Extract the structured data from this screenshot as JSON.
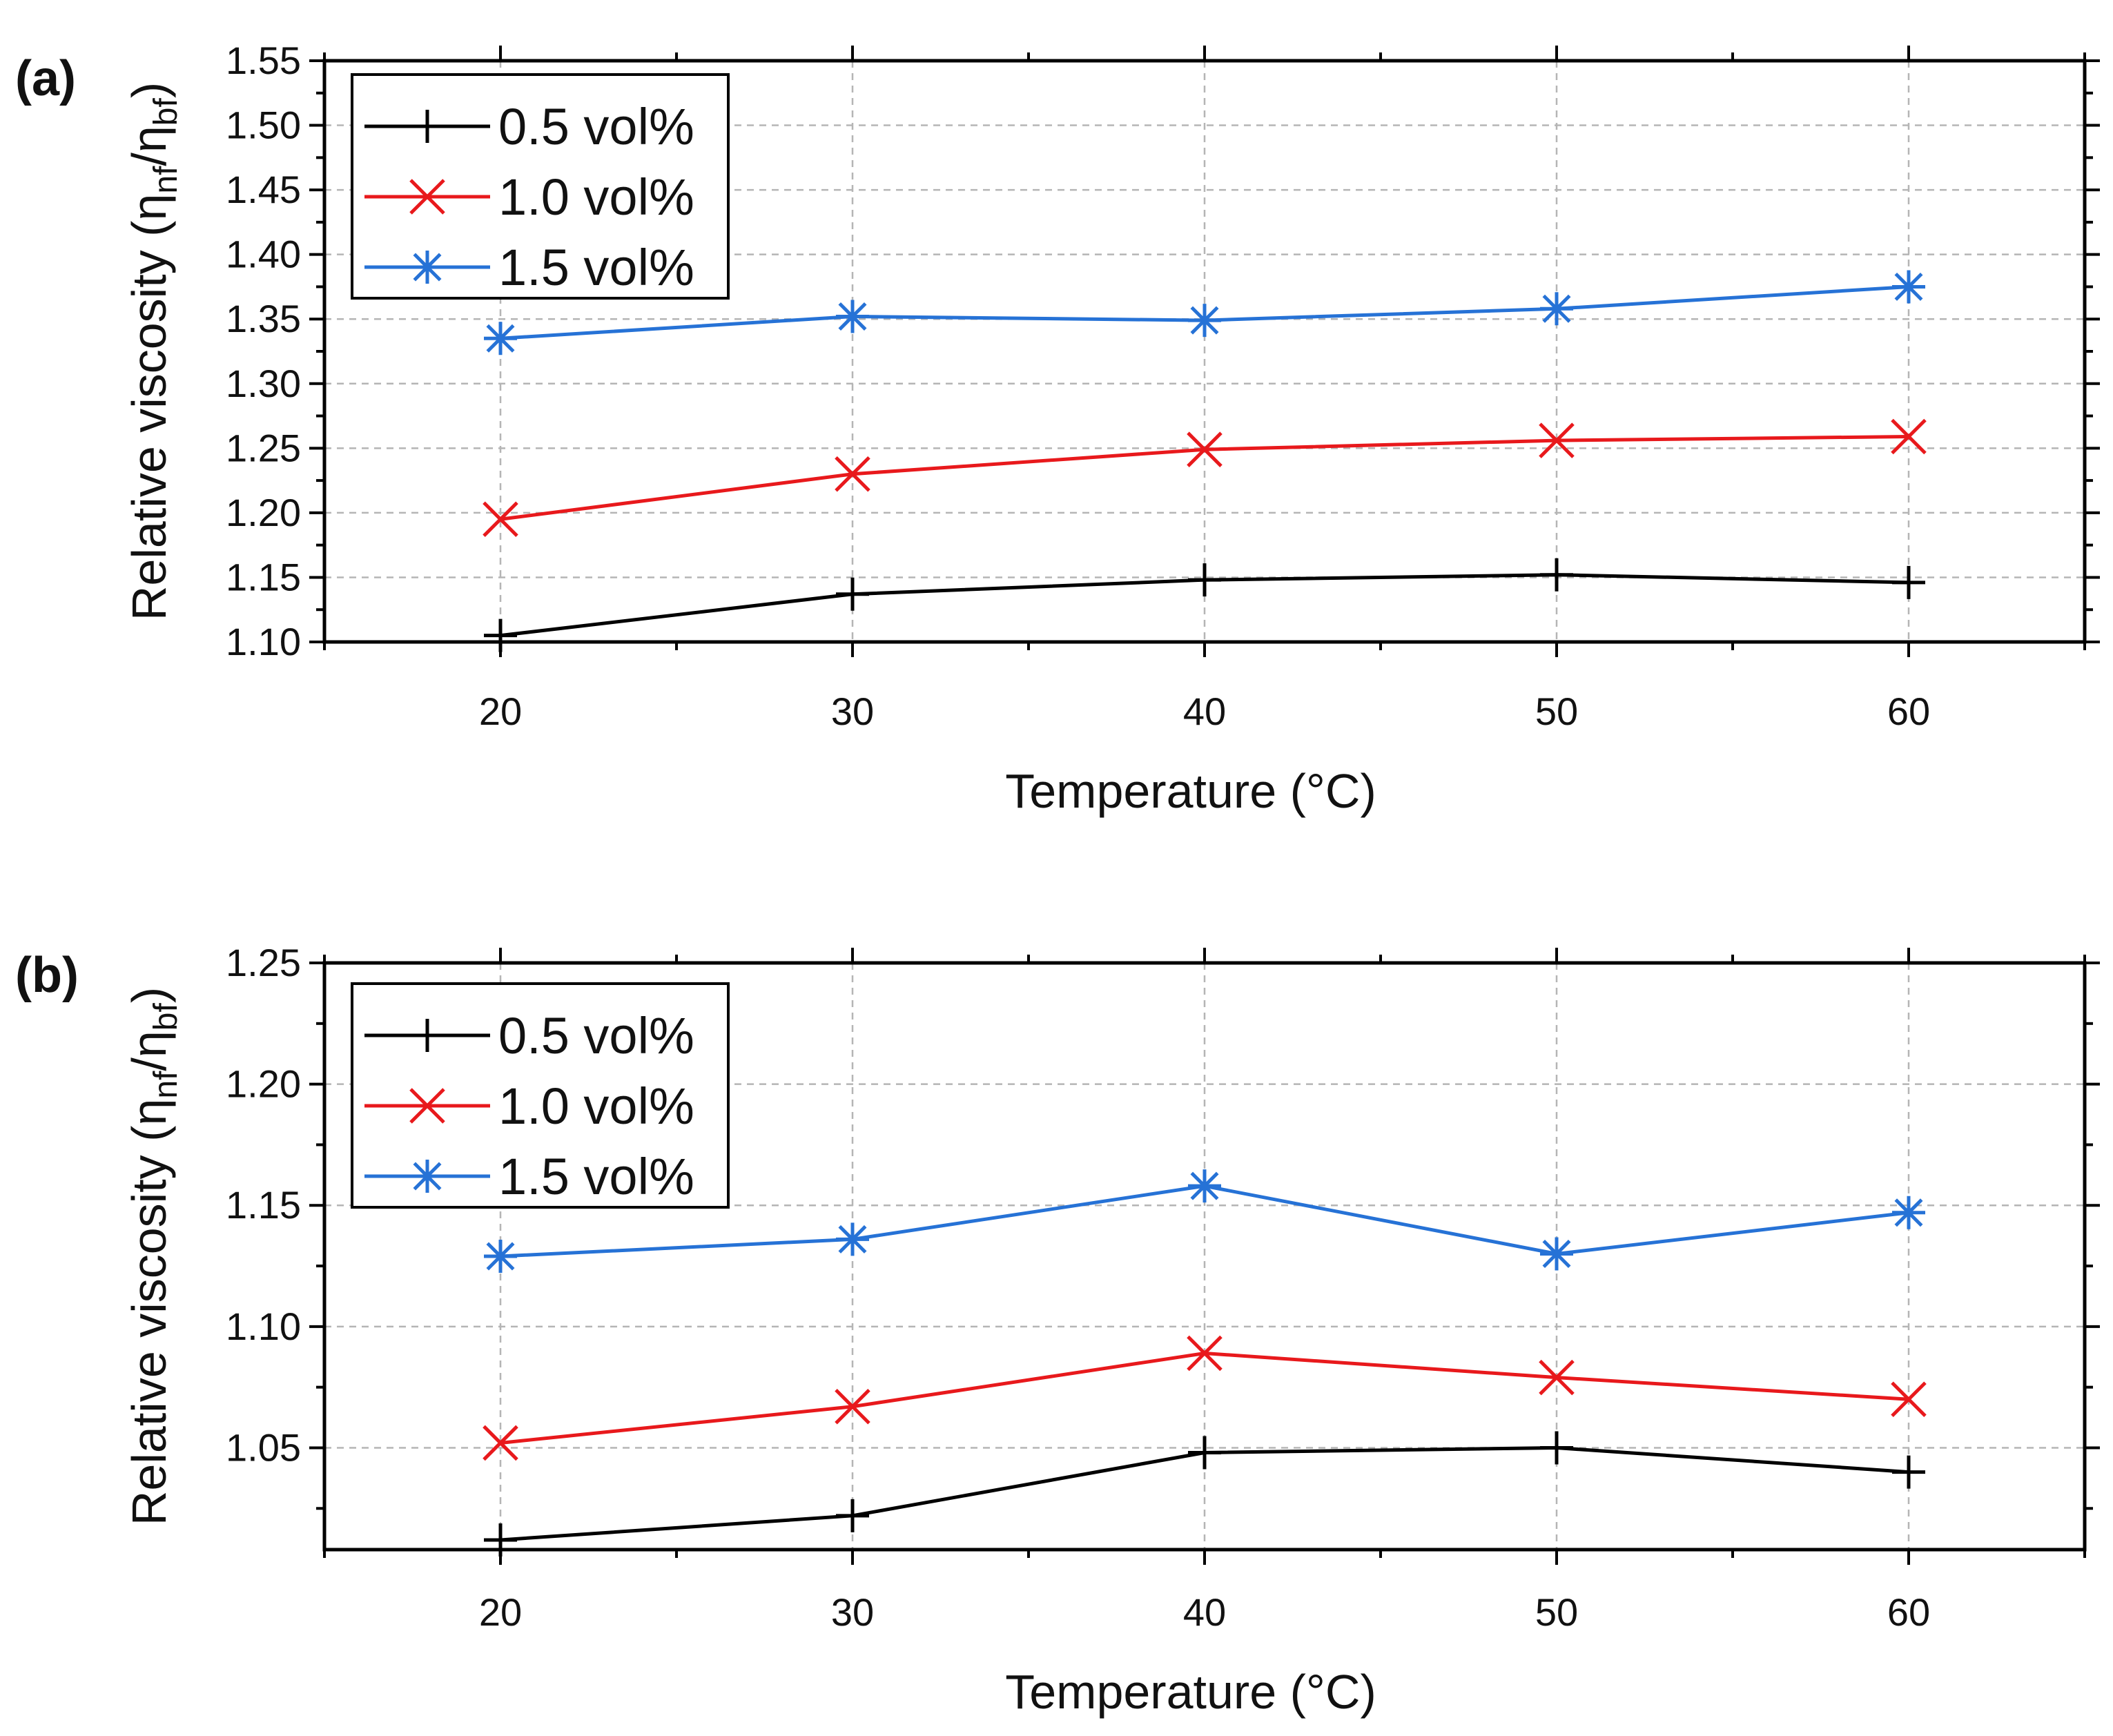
{
  "chart_data": [
    {
      "panel_label": "(a)",
      "type": "line",
      "xlabel": "Temperature (°C)",
      "ylabel_main": "Relative viscosity (η",
      "ylabel_sub1": "nf",
      "ylabel_mid": "/η",
      "ylabel_sub2": "bf",
      "ylabel_end": ")",
      "xlim": [
        15,
        65
      ],
      "ylim": [
        1.1,
        1.55
      ],
      "xticks": [
        20,
        30,
        40,
        50,
        60
      ],
      "xtick_labels": [
        "20",
        "30",
        "40",
        "50",
        "60"
      ],
      "yticks": [
        1.1,
        1.15,
        1.2,
        1.25,
        1.3,
        1.35,
        1.4,
        1.45,
        1.5,
        1.55
      ],
      "ytick_labels": [
        "1.10",
        "1.15",
        "1.20",
        "1.25",
        "1.30",
        "1.35",
        "1.40",
        "1.45",
        "1.50",
        "1.55"
      ],
      "grid": true,
      "legend_position": "top-left",
      "x": [
        20,
        30,
        40,
        50,
        60
      ],
      "series": [
        {
          "name": "0.5 vol%",
          "color": "#000000",
          "marker": "plus",
          "values": [
            1.105,
            1.137,
            1.148,
            1.152,
            1.146
          ]
        },
        {
          "name": "1.0 vol%",
          "color": "#e8191c",
          "marker": "x",
          "values": [
            1.195,
            1.23,
            1.249,
            1.256,
            1.259
          ]
        },
        {
          "name": "1.5 vol%",
          "color": "#2672d6",
          "marker": "star",
          "values": [
            1.335,
            1.352,
            1.349,
            1.358,
            1.375
          ]
        }
      ]
    },
    {
      "panel_label": "(b)",
      "type": "line",
      "xlabel": "Temperature (°C)",
      "ylabel_main": "Relative viscosity (η",
      "ylabel_sub1": "nf",
      "ylabel_mid": "/η",
      "ylabel_sub2": "bf",
      "ylabel_end": ")",
      "xlim": [
        15,
        65
      ],
      "ylim": [
        1.008,
        1.25
      ],
      "xticks": [
        20,
        30,
        40,
        50,
        60
      ],
      "xtick_labels": [
        "20",
        "30",
        "40",
        "50",
        "60"
      ],
      "yticks": [
        1.05,
        1.1,
        1.15,
        1.2,
        1.25
      ],
      "ytick_labels": [
        "1.05",
        "1.10",
        "1.15",
        "1.20",
        "1.25"
      ],
      "grid": true,
      "legend_position": "top-left",
      "x": [
        20,
        30,
        40,
        50,
        60
      ],
      "series": [
        {
          "name": "0.5 vol%",
          "color": "#000000",
          "marker": "plus",
          "values": [
            1.012,
            1.022,
            1.048,
            1.05,
            1.04
          ]
        },
        {
          "name": "1.0 vol%",
          "color": "#e8191c",
          "marker": "x",
          "values": [
            1.052,
            1.067,
            1.089,
            1.079,
            1.07
          ]
        },
        {
          "name": "1.5 vol%",
          "color": "#2672d6",
          "marker": "star",
          "values": [
            1.129,
            1.136,
            1.158,
            1.13,
            1.147
          ]
        }
      ]
    }
  ]
}
